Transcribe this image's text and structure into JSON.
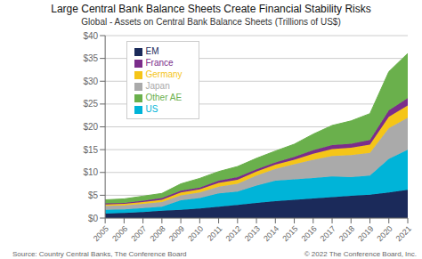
{
  "chart_data": {
    "type": "area",
    "title": "Large Central Bank Balance Sheets Create Financial Stability Risks",
    "subtitle": "Global - Assets on Central Bank Balance Sheets (Trillions of US$)",
    "annotations": [
      "Source: Country Central Banks, The Conference Board",
      "© 2022 The Conference Board, Inc."
    ],
    "x": [
      2005,
      2006,
      2007,
      2008,
      2009,
      2010,
      2011,
      2012,
      2013,
      2014,
      2015,
      2016,
      2017,
      2018,
      2019,
      2020,
      2021
    ],
    "xlim": [
      2005,
      2021
    ],
    "xticks": [
      2005,
      2006,
      2007,
      2008,
      2009,
      2010,
      2011,
      2012,
      2013,
      2014,
      2015,
      2016,
      2017,
      2018,
      2019,
      2020,
      2021
    ],
    "ylim": [
      0,
      40
    ],
    "yticks": [
      {
        "value": 0,
        "label": "$0"
      },
      {
        "value": 5,
        "label": "$5"
      },
      {
        "value": 10,
        "label": "$10"
      },
      {
        "value": 15,
        "label": "$15"
      },
      {
        "value": 20,
        "label": "$20"
      },
      {
        "value": 25,
        "label": "$25"
      },
      {
        "value": 30,
        "label": "$30"
      },
      {
        "value": 35,
        "label": "$35"
      },
      {
        "value": 40,
        "label": "$40"
      }
    ],
    "stacked": true,
    "grid": true,
    "legend": "upper left",
    "series": [
      {
        "name": "EM",
        "color": "#1b2a5a",
        "values": [
          1.0,
          1.1,
          1.3,
          1.6,
          1.8,
          2.1,
          2.5,
          2.9,
          3.3,
          3.7,
          4.0,
          4.3,
          4.6,
          4.9,
          5.1,
          5.6,
          6.2
        ]
      },
      {
        "name": "US",
        "color": "#00b4d8",
        "values": [
          0.8,
          0.8,
          0.9,
          0.9,
          2.1,
          2.3,
          2.9,
          2.9,
          3.8,
          4.5,
          4.5,
          4.5,
          4.5,
          4.1,
          4.2,
          7.4,
          8.8
        ]
      },
      {
        "name": "Japan",
        "color": "#aaaaaa",
        "values": [
          0.9,
          0.9,
          0.9,
          1.0,
          1.1,
          1.2,
          1.5,
          1.7,
          2.2,
          2.6,
          3.3,
          4.0,
          4.5,
          4.8,
          5.0,
          6.7,
          7.0
        ]
      },
      {
        "name": "Germany",
        "color": "#f5c518",
        "values": [
          0.3,
          0.3,
          0.4,
          0.5,
          0.6,
          0.7,
          0.8,
          0.9,
          0.9,
          0.9,
          1.0,
          1.3,
          1.5,
          1.6,
          1.8,
          2.5,
          2.7
        ]
      },
      {
        "name": "France",
        "color": "#7b2d8b",
        "values": [
          0.2,
          0.2,
          0.3,
          0.4,
          0.4,
          0.4,
          0.5,
          0.6,
          0.5,
          0.5,
          0.6,
          0.8,
          0.9,
          0.9,
          1.0,
          1.4,
          1.6
        ]
      },
      {
        "name": "Other AE",
        "color": "#6ab04c",
        "values": [
          0.8,
          0.9,
          1.0,
          1.0,
          1.5,
          2.0,
          2.0,
          2.3,
          2.4,
          2.5,
          2.8,
          3.5,
          4.3,
          5.0,
          5.8,
          8.5,
          9.8
        ]
      }
    ]
  }
}
